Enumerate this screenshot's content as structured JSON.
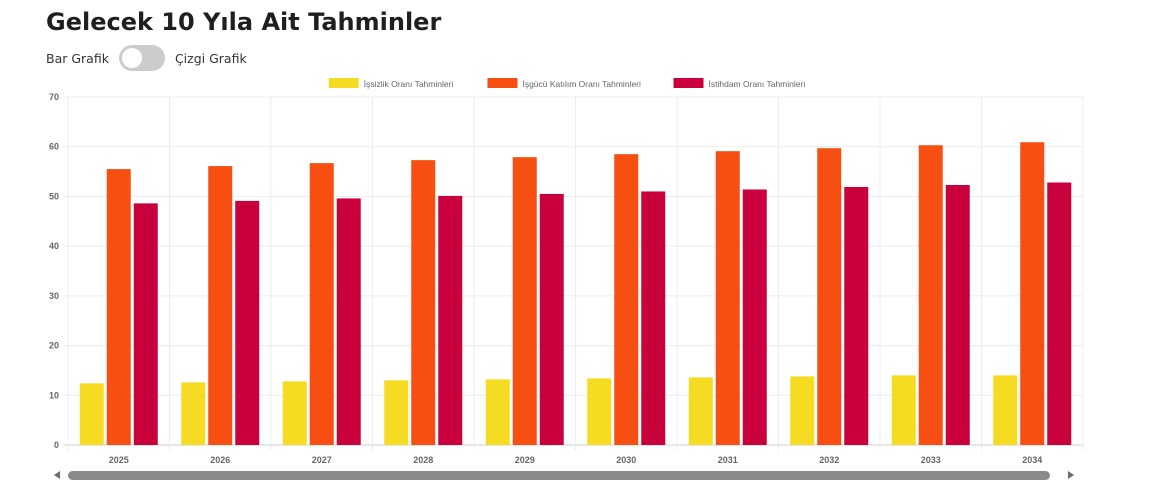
{
  "page": {
    "title": "Gelecek 10 Yıla Ait Tahminler"
  },
  "toggle": {
    "left_label": "Bar Grafik",
    "right_label": "Çizgi Grafik",
    "checked": false
  },
  "chart_data": {
    "type": "bar",
    "categories": [
      "2025",
      "2026",
      "2027",
      "2028",
      "2029",
      "2030",
      "2031",
      "2032",
      "2033",
      "2034"
    ],
    "series": [
      {
        "name": "İşsizlik Oranı Tahminleri",
        "color": "#f5dc22",
        "values": [
          12.4,
          12.6,
          12.8,
          13.0,
          13.2,
          13.4,
          13.6,
          13.8,
          14.0,
          14.0
        ]
      },
      {
        "name": "İşgücü Katılım Oranı Tahminleri",
        "color": "#f74e12",
        "values": [
          55.5,
          56.1,
          56.7,
          57.3,
          57.9,
          58.5,
          59.1,
          59.7,
          60.3,
          60.9
        ]
      },
      {
        "name": "İstihdam Oranı Tahminleri",
        "color": "#c8003c",
        "values": [
          48.6,
          49.1,
          49.6,
          50.1,
          50.5,
          51.0,
          51.4,
          51.9,
          52.3,
          52.8
        ]
      }
    ],
    "ylim": [
      0,
      70
    ],
    "yticks": [
      0,
      10,
      20,
      30,
      40,
      50,
      60,
      70
    ],
    "grid": true,
    "legend": "top-center"
  }
}
